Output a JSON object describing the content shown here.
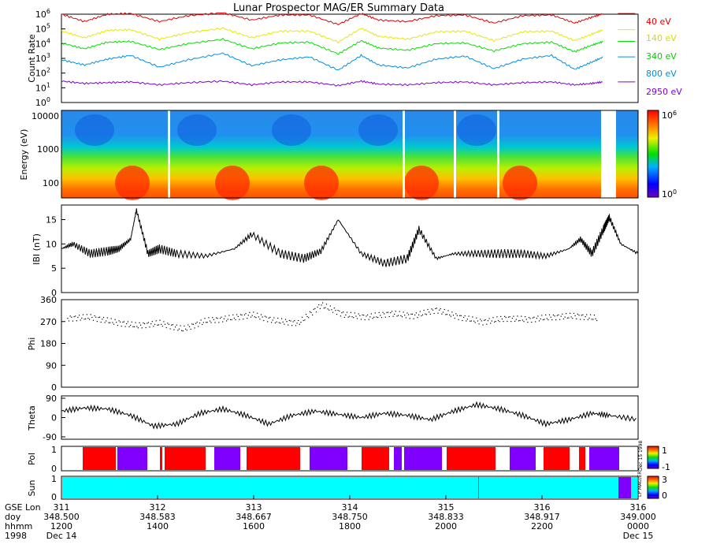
{
  "title": "Lunar Prospector MAG/ER Summary Data",
  "chart_data": [
    {
      "type": "line",
      "ylabel": "Count Rate",
      "yscale": "log",
      "ylim": [
        1,
        1000000
      ],
      "yticks": [
        {
          "base": "10",
          "exp": "0"
        },
        {
          "base": "10",
          "exp": "1"
        },
        {
          "base": "10",
          "exp": "2"
        },
        {
          "base": "10",
          "exp": "3"
        },
        {
          "base": "10",
          "exp": "4"
        },
        {
          "base": "10",
          "exp": "5"
        },
        {
          "base": "10",
          "exp": "6"
        }
      ],
      "x": [
        0.0,
        0.04,
        0.08,
        0.12,
        0.17,
        0.22,
        0.28,
        0.33,
        0.38,
        0.43,
        0.48,
        0.52,
        0.55,
        0.6,
        0.65,
        0.7,
        0.75,
        0.8,
        0.85,
        0.89,
        0.92,
        0.94
      ],
      "series": [
        {
          "name": "40 eV",
          "color": "#e00000",
          "y": [
            6.0,
            5.5,
            6.0,
            6.05,
            5.5,
            5.9,
            6.1,
            5.6,
            5.95,
            5.95,
            5.3,
            6.05,
            5.6,
            5.5,
            5.9,
            5.95,
            5.4,
            5.9,
            5.95,
            5.4,
            5.8,
            6.05
          ]
        },
        {
          "name": "140 eV",
          "color": "#e8e800",
          "y": [
            4.85,
            4.4,
            4.9,
            4.95,
            4.3,
            4.75,
            5.05,
            4.4,
            4.85,
            4.85,
            4.1,
            5.05,
            4.5,
            4.3,
            4.8,
            4.85,
            4.2,
            4.8,
            4.85,
            4.2,
            4.65,
            4.95
          ]
        },
        {
          "name": "340 eV",
          "color": "#00e000",
          "y": [
            4.05,
            3.65,
            4.1,
            4.15,
            3.6,
            4.0,
            4.3,
            3.65,
            4.05,
            4.1,
            3.3,
            4.2,
            3.7,
            3.55,
            4.0,
            4.05,
            3.5,
            4.0,
            4.1,
            3.45,
            3.9,
            4.15
          ]
        },
        {
          "name": "800 eV",
          "color": "#0090e0",
          "y": [
            2.9,
            2.55,
            2.95,
            3.2,
            2.4,
            2.9,
            3.35,
            2.5,
            2.9,
            3.1,
            2.2,
            3.2,
            2.55,
            2.35,
            2.95,
            3.15,
            2.3,
            2.95,
            3.2,
            2.25,
            2.75,
            3.1
          ]
        },
        {
          "name": "2950 eV",
          "color": "#8000d0",
          "y": [
            1.45,
            1.3,
            1.35,
            1.4,
            1.2,
            1.35,
            1.45,
            1.2,
            1.4,
            1.4,
            1.15,
            1.45,
            1.25,
            1.2,
            1.35,
            1.4,
            1.2,
            1.35,
            1.4,
            1.2,
            1.3,
            1.4
          ]
        }
      ]
    },
    {
      "type": "heatmap",
      "ylabel": "Energy (eV)",
      "yscale": "log",
      "ylim": [
        40,
        15000
      ],
      "yticks": [
        "100",
        "1000",
        "10000"
      ],
      "colorbar": {
        "min": "0",
        "max": "6"
      }
    },
    {
      "type": "line",
      "ylabel": "IBI (nT)",
      "ylim": [
        0,
        18
      ],
      "yticks": [
        "0",
        "5",
        "10",
        "15"
      ],
      "x": [
        0.0,
        0.02,
        0.05,
        0.08,
        0.1,
        0.12,
        0.13,
        0.15,
        0.17,
        0.2,
        0.25,
        0.3,
        0.33,
        0.38,
        0.42,
        0.45,
        0.48,
        0.52,
        0.56,
        0.6,
        0.62,
        0.65,
        0.68,
        0.72,
        0.76,
        0.8,
        0.84,
        0.88,
        0.9,
        0.92,
        0.94,
        0.95,
        0.97,
        1.0
      ],
      "y": [
        9,
        10,
        8,
        8.5,
        9,
        11,
        17,
        8,
        9,
        8,
        7.5,
        9,
        12,
        8,
        7,
        8.5,
        15,
        8,
        6,
        7,
        13,
        7,
        8,
        8,
        8,
        8,
        7.5,
        9,
        11,
        8,
        13,
        15.5,
        10,
        8
      ]
    },
    {
      "type": "scatter",
      "ylabel": "Phi",
      "ylim": [
        0,
        360
      ],
      "yticks": [
        "0",
        "90",
        "180",
        "270",
        "360"
      ],
      "x": [
        0.01,
        0.05,
        0.09,
        0.13,
        0.17,
        0.21,
        0.25,
        0.29,
        0.33,
        0.37,
        0.41,
        0.45,
        0.49,
        0.53,
        0.57,
        0.61,
        0.65,
        0.69,
        0.73,
        0.77,
        0.81,
        0.85,
        0.89,
        0.93
      ],
      "y": [
        285,
        290,
        270,
        255,
        265,
        240,
        275,
        285,
        300,
        275,
        265,
        340,
        300,
        290,
        305,
        295,
        320,
        290,
        270,
        285,
        280,
        290,
        295,
        285
      ]
    },
    {
      "type": "line",
      "ylabel": "Theta",
      "ylim": [
        -90,
        90
      ],
      "yticks": [
        "-90",
        "0",
        "90"
      ],
      "x": [
        0.0,
        0.04,
        0.08,
        0.12,
        0.16,
        0.2,
        0.24,
        0.28,
        0.32,
        0.36,
        0.4,
        0.44,
        0.48,
        0.52,
        0.56,
        0.6,
        0.64,
        0.68,
        0.72,
        0.76,
        0.8,
        0.84,
        0.88,
        0.92,
        0.95,
        1.0
      ],
      "y": [
        30,
        45,
        40,
        10,
        -40,
        -30,
        20,
        40,
        10,
        -30,
        10,
        30,
        15,
        0,
        20,
        10,
        -10,
        30,
        60,
        40,
        10,
        -30,
        -10,
        20,
        10,
        -10
      ]
    },
    {
      "type": "bar",
      "ylabel": "Pol",
      "yticks": [
        "0",
        "1"
      ],
      "colorbar": {
        "min": "-1",
        "max": "1"
      }
    },
    {
      "type": "bar",
      "ylabel": "Sun",
      "yticks": [
        "0",
        "1"
      ],
      "colorbar": {
        "min": "0",
        "max": "3"
      }
    }
  ],
  "legend": [
    {
      "label": "40 eV",
      "color": "#e00000"
    },
    {
      "label": "140 eV",
      "color": "#e8e800"
    },
    {
      "label": "340 eV",
      "color": "#00e000"
    },
    {
      "label": "800 eV",
      "color": "#0090e0"
    },
    {
      "label": "2950 eV",
      "color": "#8000d0"
    }
  ],
  "side_text": {
    "pol": "Dec 15 1998",
    "sun": "LP MAG/ER"
  },
  "time_axis": {
    "row_labels": [
      "GSE Lon",
      "doy",
      "hhmm",
      "1998"
    ],
    "ticks": [
      {
        "lon": "311",
        "doy": "348.500",
        "hhmm": "1200",
        "date": "Dec 14"
      },
      {
        "lon": "312",
        "doy": "348.583",
        "hhmm": "1400",
        "date": ""
      },
      {
        "lon": "313",
        "doy": "348.667",
        "hhmm": "1600",
        "date": ""
      },
      {
        "lon": "314",
        "doy": "348.750",
        "hhmm": "1800",
        "date": ""
      },
      {
        "lon": "315",
        "doy": "348.833",
        "hhmm": "2000",
        "date": ""
      },
      {
        "lon": "316",
        "doy": "348.917",
        "hhmm": "2200",
        "date": ""
      },
      {
        "lon": "316",
        "doy": "349.000",
        "hhmm": "0000",
        "date": "Dec 15"
      }
    ]
  }
}
